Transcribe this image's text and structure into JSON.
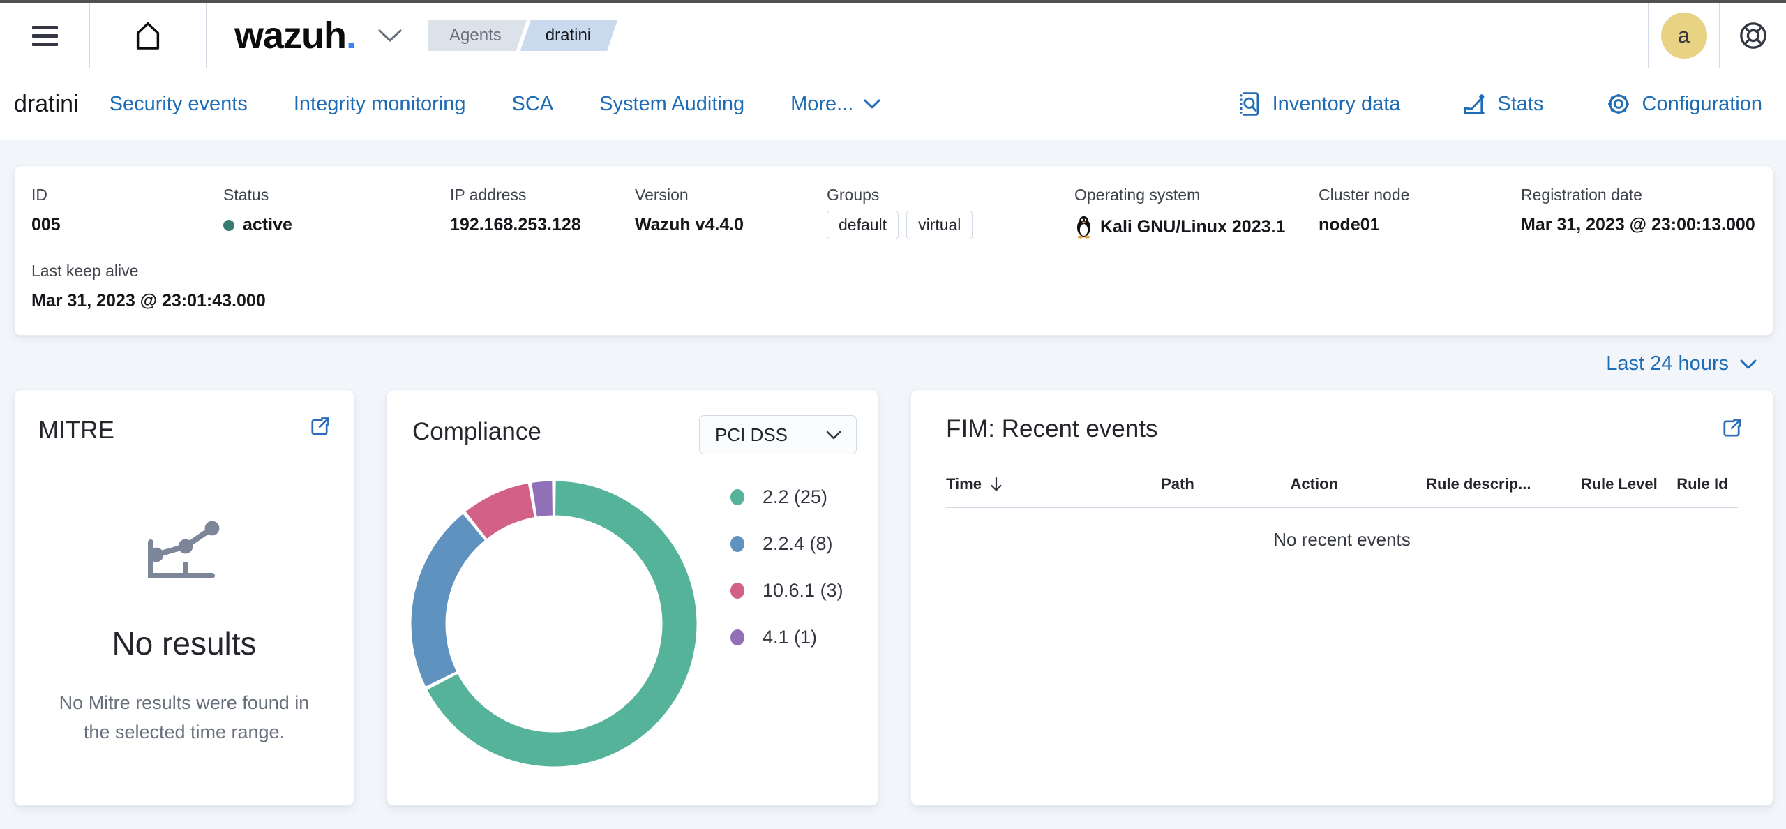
{
  "chrome": {
    "top_strip_color": "#515151"
  },
  "header": {
    "logo_text": "wazuh",
    "logo_dot": ".",
    "breadcrumbs": [
      {
        "label": "Agents"
      },
      {
        "label": "dratini"
      }
    ],
    "avatar_initial": "a"
  },
  "nav": {
    "agent_name": "dratini",
    "tabs": [
      "Security events",
      "Integrity monitoring",
      "SCA",
      "System Auditing"
    ],
    "more_label": "More...",
    "actions": [
      "Inventory data",
      "Stats",
      "Configuration"
    ]
  },
  "agent_info": {
    "id_label": "ID",
    "id_value": "005",
    "status_label": "Status",
    "status_value": "active",
    "status_color": "#367c70",
    "ip_label": "IP address",
    "ip_value": "192.168.253.128",
    "version_label": "Version",
    "version_value": "Wazuh v4.4.0",
    "groups_label": "Groups",
    "groups": [
      "default",
      "virtual"
    ],
    "os_label": "Operating system",
    "os_value": "Kali GNU/Linux 2023.1",
    "node_label": "Cluster node",
    "node_value": "node01",
    "reg_label": "Registration date",
    "reg_value": "Mar 31, 2023 @ 23:00:13.000",
    "keepalive_label": "Last keep alive",
    "keepalive_value": "Mar 31, 2023 @ 23:01:43.000"
  },
  "time_filter": {
    "label": "Last 24 hours"
  },
  "mitre_card": {
    "title": "MITRE",
    "empty_title": "No results",
    "empty_message": "No Mitre results were found in the selected time range."
  },
  "compliance_card": {
    "title": "Compliance",
    "selector_value": "PCI DSS",
    "chart_data": {
      "type": "pie",
      "legend_position": "right",
      "segments": [
        {
          "label": "2.2",
          "value": 25,
          "color": "#54B399",
          "legend": "2.2 (25)"
        },
        {
          "label": "2.2.4",
          "value": 8,
          "color": "#6092C0",
          "legend": "2.2.4 (8)"
        },
        {
          "label": "10.6.1",
          "value": 3,
          "color": "#D36086",
          "legend": "10.6.1 (3)"
        },
        {
          "label": "4.1",
          "value": 1,
          "color": "#9170B8",
          "legend": "4.1 (1)"
        }
      ]
    }
  },
  "fim_card": {
    "title": "FIM: Recent events",
    "columns": [
      "Time",
      "Path",
      "Action",
      "Rule descrip...",
      "Rule Level",
      "Rule Id"
    ],
    "empty_message": "No recent events"
  }
}
